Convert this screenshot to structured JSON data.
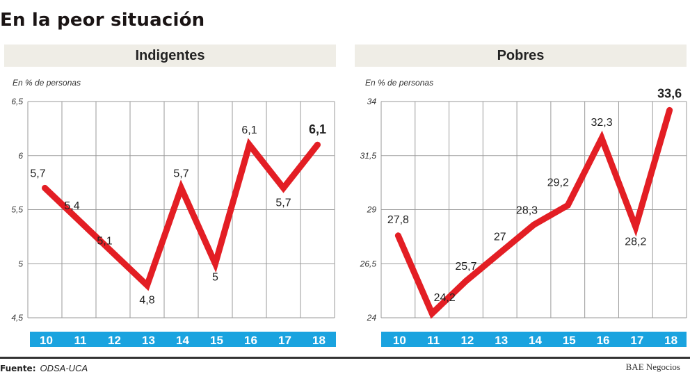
{
  "title": "En la peor situación",
  "footer": {
    "source_label": "Fuente:",
    "source_value": "ODSA-UCA",
    "credit": "BAE Negocios"
  },
  "colors": {
    "line": "#e31e24",
    "xaxis_bar": "#1aa3df",
    "panel_header_bg": "#efede6",
    "grid": "#9a9a9a"
  },
  "chart_data": [
    {
      "type": "line",
      "title": "Indigentes",
      "ylabel": "En % de personas",
      "xlabel": "",
      "categories": [
        "10",
        "11",
        "12",
        "13",
        "14",
        "15",
        "16",
        "17",
        "18"
      ],
      "values": [
        5.7,
        5.4,
        5.1,
        4.8,
        5.7,
        5.0,
        6.1,
        5.7,
        6.1
      ],
      "value_labels": [
        "5,7",
        "5,4",
        "5,1",
        "4,8",
        "5,7",
        "5",
        "6,1",
        "5,7",
        "6,1"
      ],
      "yticks": [
        4.5,
        5,
        5.5,
        6,
        6.5
      ],
      "ytick_labels": [
        "4,5",
        "5",
        "5,5",
        "6",
        "6,5"
      ],
      "ylim": [
        4.5,
        6.5
      ],
      "grid": true,
      "legend": "none"
    },
    {
      "type": "line",
      "title": "Pobres",
      "ylabel": "En % de personas",
      "xlabel": "",
      "categories": [
        "10",
        "11",
        "12",
        "13",
        "14",
        "15",
        "16",
        "17",
        "18"
      ],
      "values": [
        27.8,
        24.2,
        25.7,
        27.0,
        28.3,
        29.2,
        32.3,
        28.2,
        33.6
      ],
      "value_labels": [
        "27,8",
        "24,2",
        "25,7",
        "27",
        "28,3",
        "29,2",
        "32,3",
        "28,2",
        "33,6"
      ],
      "yticks": [
        24,
        26.5,
        29,
        31.5,
        34
      ],
      "ytick_labels": [
        "24",
        "26,5",
        "29",
        "31,5",
        "34"
      ],
      "ylim": [
        24,
        34
      ],
      "grid": true,
      "legend": "none"
    }
  ]
}
